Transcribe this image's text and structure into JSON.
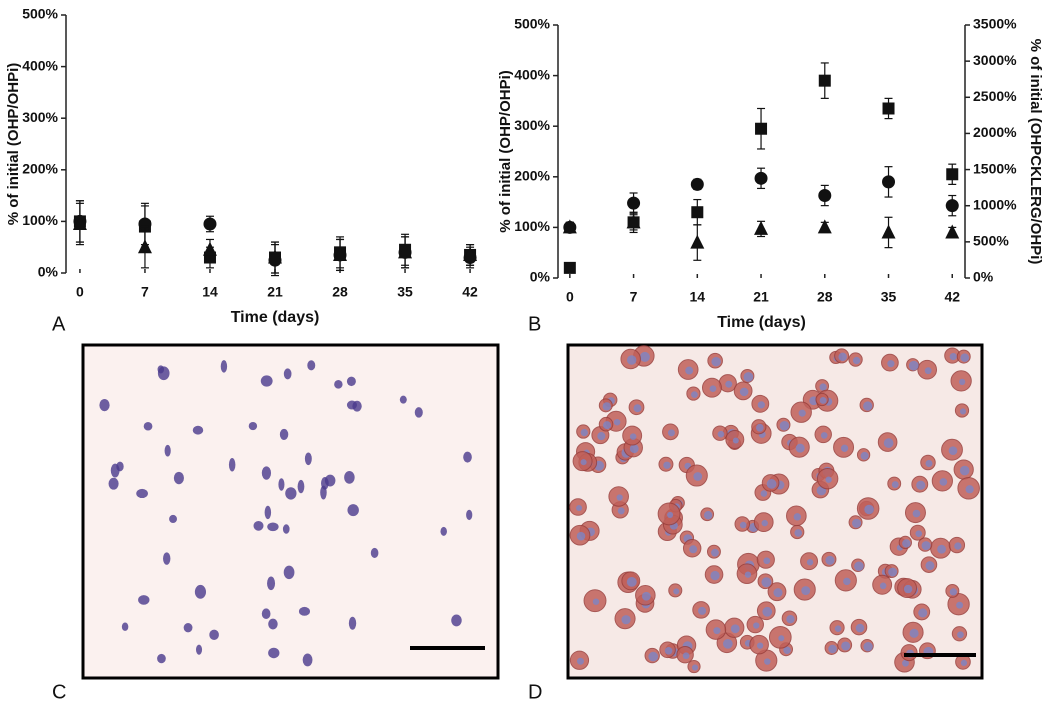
{
  "chart_data": [
    {
      "type": "scatter",
      "xlabel": "Time (days)",
      "ylabel": "% of initial (OHP/OHPi)",
      "x": [
        0,
        7,
        14,
        21,
        28,
        35,
        42
      ],
      "xlim": [
        -1.5,
        43.5
      ],
      "xticks": [
        0,
        7,
        14,
        21,
        28,
        35,
        42
      ],
      "ylim": [
        0,
        500
      ],
      "yticks": [
        {
          "value": 0,
          "label": "0%"
        },
        {
          "value": 100,
          "label": "100%"
        },
        {
          "value": 200,
          "label": "200%"
        },
        {
          "value": 300,
          "label": "300%"
        },
        {
          "value": 400,
          "label": "400%"
        },
        {
          "value": 500,
          "label": "500%"
        }
      ],
      "series": [
        {
          "marker": "square",
          "color": "#111111",
          "values": [
            100,
            90,
            30,
            30,
            40,
            45,
            35
          ],
          "errors": [
            40,
            40,
            20,
            30,
            30,
            30,
            20
          ]
        },
        {
          "marker": "circle",
          "color": "#111111",
          "values": [
            100,
            95,
            95,
            25,
            35,
            40,
            30
          ],
          "errors": [
            40,
            40,
            15,
            30,
            30,
            30,
            20
          ]
        },
        {
          "marker": "triangle",
          "color": "#111111",
          "values": [
            95,
            50,
            45,
            30,
            35,
            40,
            35
          ],
          "errors": [
            40,
            40,
            20,
            30,
            30,
            30,
            20
          ]
        }
      ]
    },
    {
      "type": "scatter",
      "xlabel": "Time (days)",
      "ylabel": "% of initial (OHP/OHPi)",
      "y2label": "% of initial (OHPCKLERG/OHPi)",
      "x": [
        0,
        7,
        14,
        21,
        28,
        35,
        42
      ],
      "xlim": [
        -1.3,
        43.4
      ],
      "xticks": [
        0,
        7,
        14,
        21,
        28,
        35,
        42
      ],
      "ylim": [
        0,
        500
      ],
      "yticks": [
        {
          "value": 0,
          "label": "0%"
        },
        {
          "value": 100,
          "label": "100%"
        },
        {
          "value": 200,
          "label": "200%"
        },
        {
          "value": 300,
          "label": "300%"
        },
        {
          "value": 400,
          "label": "400%"
        },
        {
          "value": 500,
          "label": "500%"
        }
      ],
      "y2lim": [
        0,
        3500
      ],
      "y2ticks": [
        {
          "value": 0,
          "label": "0%"
        },
        {
          "value": 500,
          "label": "500%"
        },
        {
          "value": 1000,
          "label": "1000%"
        },
        {
          "value": 1500,
          "label": "1500%"
        },
        {
          "value": 2000,
          "label": "2000%"
        },
        {
          "value": 2500,
          "label": "2500%"
        },
        {
          "value": 3000,
          "label": "3000%"
        },
        {
          "value": 3500,
          "label": "3500%"
        }
      ],
      "series": [
        {
          "marker": "square",
          "color": "#111111",
          "axis": "y2",
          "values": [
            140,
            770,
            910,
            2065,
            2730,
            2345,
            1435
          ],
          "errors": [
            70,
            140,
            175,
            280,
            245,
            140,
            140
          ]
        },
        {
          "marker": "circle",
          "color": "#111111",
          "values": [
            100,
            148,
            185,
            197,
            163,
            190,
            143
          ],
          "errors": [
            10,
            20,
            10,
            20,
            20,
            30,
            20
          ]
        },
        {
          "marker": "triangle",
          "color": "#111111",
          "values": [
            100,
            110,
            70,
            97,
            100,
            90,
            90
          ],
          "errors": [
            10,
            15,
            35,
            15,
            10,
            30,
            10
          ]
        }
      ]
    }
  ],
  "panel_labels": [
    "A",
    "B",
    "C",
    "D"
  ]
}
